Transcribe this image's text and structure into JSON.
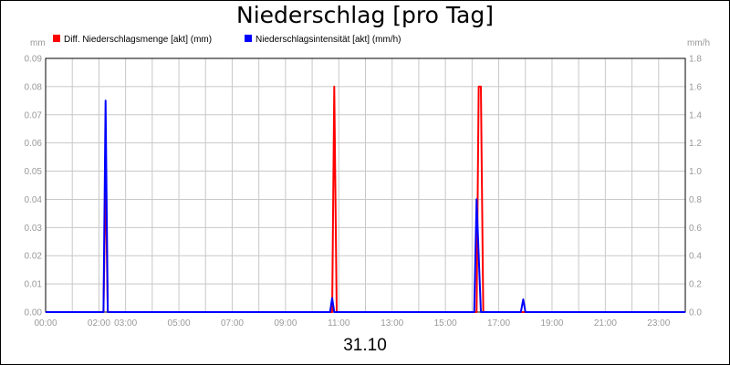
{
  "chart_data": {
    "type": "line",
    "title": "Niederschlag [pro Tag]",
    "date_label": "31.10",
    "y_left": {
      "unit": "mm",
      "ylim": [
        0,
        0.09
      ],
      "ticks": [
        "0.00",
        "0.01",
        "0.02",
        "0.03",
        "0.04",
        "0.05",
        "0.06",
        "0.07",
        "0.08",
        "0.09"
      ]
    },
    "y_right": {
      "unit": "mm/h",
      "ylim": [
        0,
        1.8
      ],
      "ticks": [
        "0.0",
        "0.2",
        "0.4",
        "0.6",
        "0.8",
        "1.0",
        "1.2",
        "1.4",
        "1.6",
        "1.8"
      ]
    },
    "x_range": [
      0,
      24
    ],
    "x_tick_hours": [
      0,
      2,
      3,
      5,
      7,
      9,
      11,
      13,
      15,
      17,
      19,
      21,
      23
    ],
    "x_tick_labels": [
      "00:00",
      "02:00",
      "03:00",
      "05:00",
      "07:00",
      "09:00",
      "11:00",
      "13:00",
      "15:00",
      "17:00",
      "19:00",
      "21:00",
      "23:00"
    ],
    "grid": true,
    "series": [
      {
        "name": "Diff. Niederschlagsmenge [akt] (mm)",
        "color": "#ff0000",
        "axis": "left",
        "points": [
          [
            0,
            0
          ],
          [
            2.17,
            0
          ],
          [
            2.25,
            0.05
          ],
          [
            2.33,
            0
          ],
          [
            10.75,
            0
          ],
          [
            10.83,
            0.08
          ],
          [
            10.92,
            0
          ],
          [
            16.08,
            0
          ],
          [
            16.17,
            0
          ],
          [
            16.25,
            0.08
          ],
          [
            16.33,
            0.08
          ],
          [
            16.42,
            0
          ],
          [
            24,
            0
          ]
        ]
      },
      {
        "name": "Niederschlagsintensität [akt] (mm/h)",
        "color": "#0000ff",
        "axis": "right",
        "points": [
          [
            0,
            0
          ],
          [
            2.17,
            0
          ],
          [
            2.25,
            1.5
          ],
          [
            2.33,
            0
          ],
          [
            10.67,
            0
          ],
          [
            10.75,
            0.1
          ],
          [
            10.83,
            0
          ],
          [
            16.08,
            0
          ],
          [
            16.17,
            0.8
          ],
          [
            16.25,
            0.4
          ],
          [
            16.33,
            0
          ],
          [
            17.83,
            0
          ],
          [
            17.92,
            0.09
          ],
          [
            18.0,
            0
          ],
          [
            24,
            0
          ]
        ]
      }
    ]
  }
}
